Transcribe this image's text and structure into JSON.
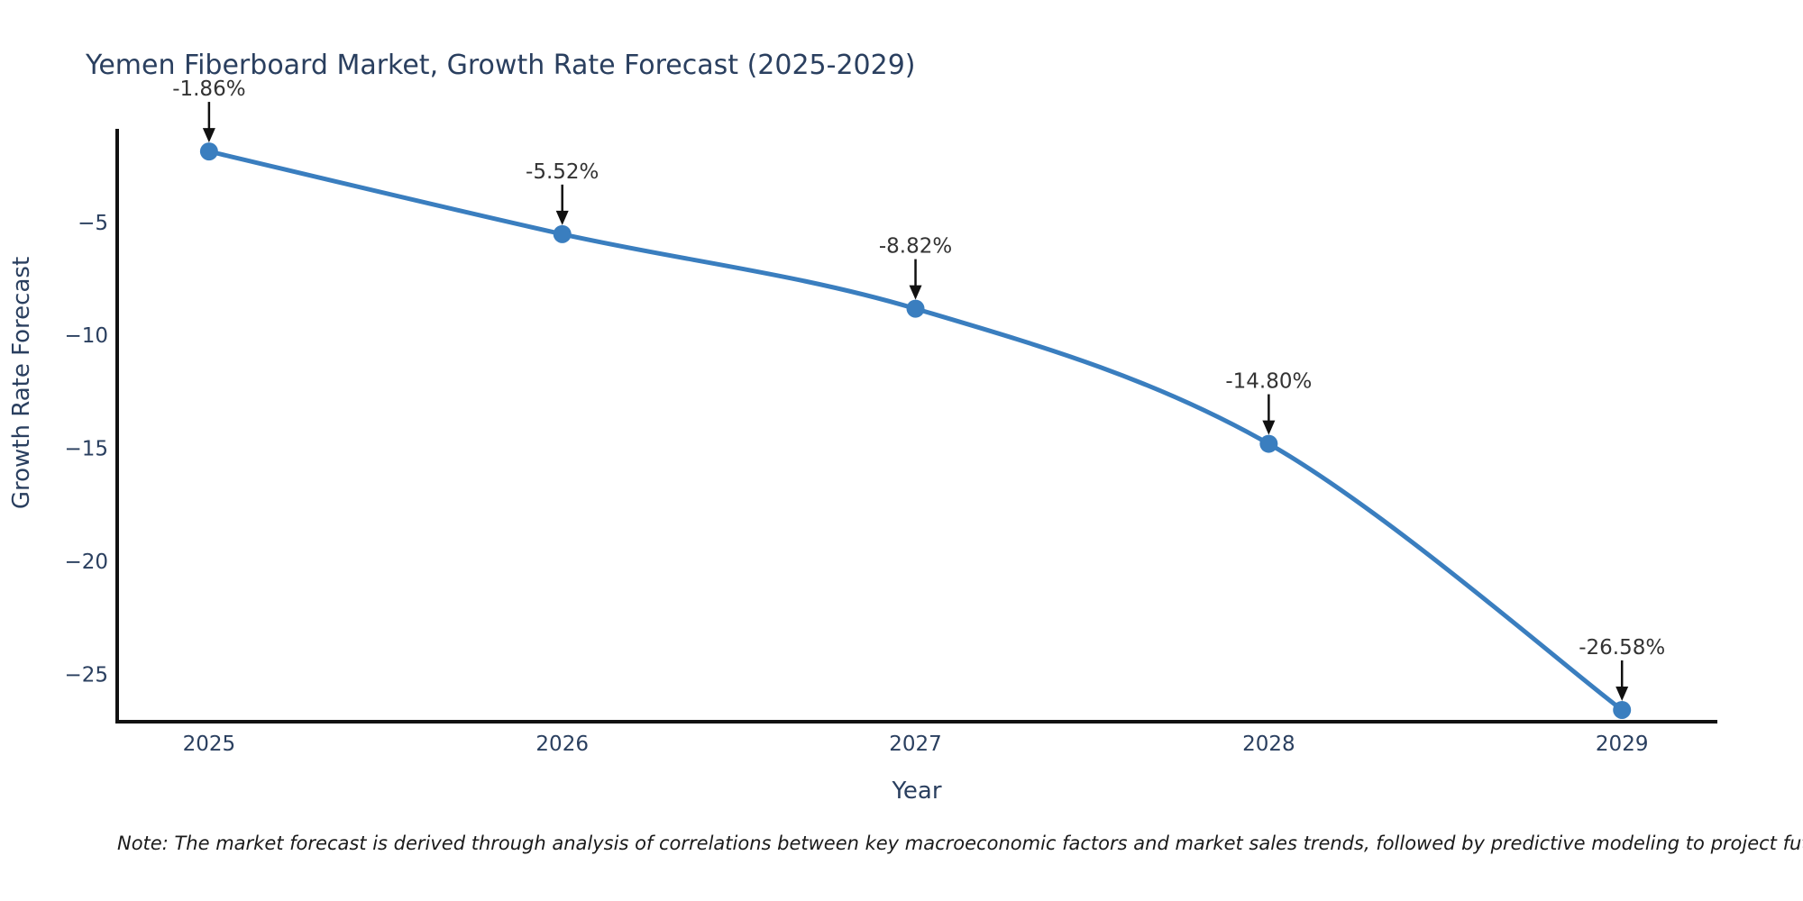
{
  "title": "Yemen Fiberboard Market, Growth Rate Forecast (2025-2029)",
  "note_text": "Note: The market forecast is derived through analysis of correlations between key macroeconomic factors and market sales trends, followed by predictive modeling to project future sales",
  "colors": {
    "title_text": "#2a3f5f",
    "tick_text": "#2a3f5f",
    "axis_line": "#111111",
    "annotation_text": "#333333",
    "annotation_arrow": "#111111",
    "series_line": "#3a7ebf",
    "series_marker": "#3a7ebf",
    "background": "#ffffff"
  },
  "chart_data": {
    "type": "line",
    "title": "Yemen Fiberboard Market, Growth Rate Forecast (2025-2029)",
    "x": [
      2025,
      2026,
      2027,
      2028,
      2029
    ],
    "y": [
      -1.86,
      -5.52,
      -8.82,
      -14.8,
      -26.58
    ],
    "point_labels": [
      "-1.86%",
      "-5.52%",
      "-8.82%",
      "-14.80%",
      "-26.58%"
    ],
    "xlabel": "Year",
    "ylabel": "Growth Rate Forecast",
    "x_ticks": [
      "2025",
      "2026",
      "2027",
      "2028",
      "2029"
    ],
    "y_ticks": [
      "−5",
      "−10",
      "−15",
      "−20",
      "−25"
    ],
    "y_tick_values": [
      -5,
      -10,
      -15,
      -20,
      -25
    ],
    "xlim": [
      2024.74,
      2029.27
    ],
    "ylim": [
      -27.1,
      -0.86
    ],
    "grid": false,
    "legend_position": "none",
    "line_shape": "spline",
    "markers": true,
    "annotations_have_arrows": true
  }
}
